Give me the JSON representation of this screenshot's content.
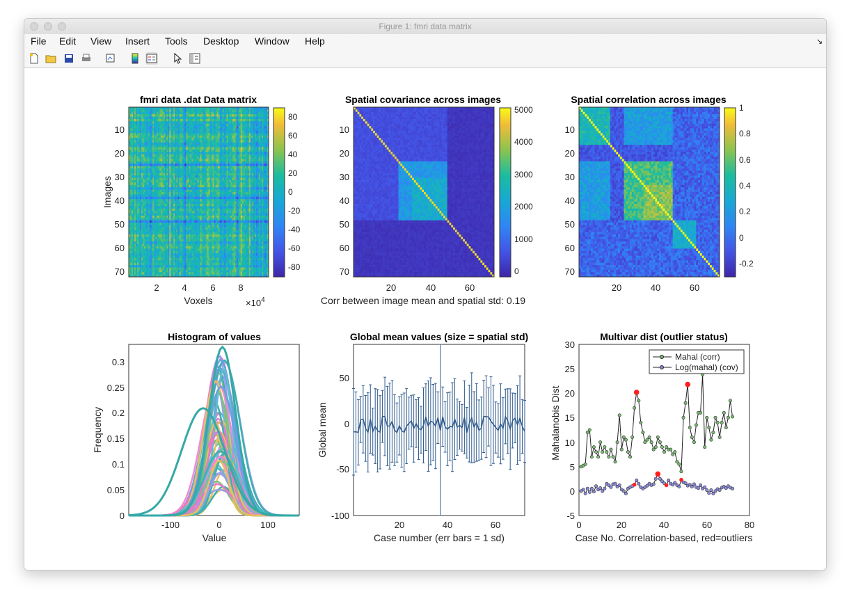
{
  "window": {
    "title": "Figure 1: fmri data matrix"
  },
  "menu": [
    "File",
    "Edit",
    "View",
    "Insert",
    "Tools",
    "Desktop",
    "Window",
    "Help"
  ],
  "toolbar_icons": [
    "new-figure-icon",
    "open-file-icon",
    "save-icon",
    "print-icon",
    "link-plot-icon",
    "colorbar-icon",
    "legend-icon",
    "pointer-icon",
    "property-inspector-icon"
  ],
  "colors": {
    "parula_low": "#3e26a8",
    "parula_mid": "#13beb8",
    "parula_high": "#f9fb15",
    "series_line": "#2e5a8c",
    "outlier": "#ff2020"
  },
  "chart_data": [
    {
      "type": "heatmap",
      "title": "fmri data .dat Data matrix",
      "xlabel": "Voxels",
      "ylabel": "Images",
      "x_exponent": "×10",
      "x_exponent_power": "4",
      "xticks": [
        "2",
        "4",
        "6",
        "8"
      ],
      "yticks": [
        "10",
        "20",
        "30",
        "40",
        "50",
        "60",
        "70"
      ],
      "colorbar_ticks": [
        "80",
        "60",
        "40",
        "20",
        "0",
        "-20",
        "-40",
        "-60",
        "-80"
      ],
      "clim": [
        -90,
        90
      ]
    },
    {
      "type": "heatmap",
      "title": "Spatial covariance across images",
      "xlabel": "Corr between image mean and spatial std: 0.19",
      "xticks": [
        "20",
        "40",
        "60"
      ],
      "yticks": [
        "10",
        "20",
        "30",
        "40",
        "50",
        "60",
        "70"
      ],
      "colorbar_ticks": [
        "5000",
        "4000",
        "3000",
        "2000",
        "1000",
        "0"
      ],
      "clim": [
        -100,
        5200
      ]
    },
    {
      "type": "heatmap",
      "title": "Spatial correlation across images",
      "xticks": [
        "20",
        "40",
        "60"
      ],
      "yticks": [
        "10",
        "20",
        "30",
        "40",
        "50",
        "60",
        "70"
      ],
      "colorbar_ticks": [
        "1",
        "0.8",
        "0.6",
        "0.4",
        "0.2",
        "0",
        "-0.2"
      ],
      "clim": [
        -0.32,
        1.0
      ]
    },
    {
      "type": "line",
      "title": "Histogram of values",
      "xlabel": "Value",
      "ylabel": "Frequency",
      "xlim": [
        -190,
        165
      ],
      "ylim": [
        0,
        0.335
      ],
      "xticks": [
        "-100",
        "0",
        "100"
      ],
      "yticks": [
        "0",
        "0.05",
        "0.1",
        "0.15",
        "0.2",
        "0.25",
        "0.3"
      ],
      "series_count": 72
    },
    {
      "type": "line",
      "title": "Global mean values (size = spatial std)",
      "xlabel": "Case number (err bars = 1 sd)",
      "ylabel": "Global mean",
      "xlim": [
        1,
        72
      ],
      "ylim": [
        -100,
        88
      ],
      "xticks": [
        "20",
        "40",
        "60"
      ],
      "yticks": [
        "50",
        "0",
        "-50",
        "-100"
      ]
    },
    {
      "type": "line",
      "title": "Multivar dist (outlier status)",
      "xlabel": "Case No. Correlation-based, red=outliers",
      "ylabel": "Mahalanobis Dist",
      "xlim": [
        0,
        80
      ],
      "ylim": [
        -5,
        30
      ],
      "xticks": [
        "0",
        "20",
        "40",
        "60",
        "80"
      ],
      "yticks": [
        "30",
        "25",
        "20",
        "15",
        "10",
        "5",
        "0",
        "-5"
      ],
      "legend": [
        "Mahal (corr)",
        "Log(mahal) (cov)"
      ],
      "mahal_corr": [
        5,
        5.2,
        5.5,
        12,
        12.5,
        7,
        9,
        8,
        7,
        10,
        8,
        9,
        8,
        7,
        8.5,
        7,
        6,
        10,
        15.5,
        8.5,
        11,
        10.5,
        8,
        7,
        11,
        17,
        20.2,
        18.5,
        14,
        12,
        10,
        10.5,
        11,
        10,
        8.5,
        9,
        11,
        10,
        9,
        8,
        9,
        8.5,
        8.5,
        7.5,
        8,
        6,
        5.5,
        4,
        15,
        18,
        21.8,
        13,
        11,
        10,
        13.5,
        16,
        16,
        23.8,
        9,
        15,
        13,
        10.5,
        12,
        15,
        14,
        11,
        14,
        16,
        13,
        15,
        18.5,
        15.2
      ],
      "log_mahal_cov": [
        0,
        0.3,
        -0.5,
        0.5,
        -0.2,
        0.5,
        -0.1,
        1,
        0.3,
        0.6,
        0,
        0.5,
        1.5,
        1.2,
        0.8,
        1.4,
        1.5,
        0.9,
        1.2,
        0.3,
        0,
        -0.5,
        0.5,
        0.8,
        1,
        1.3,
        2.2,
        1.5,
        0.8,
        0.5,
        0.8,
        1.1,
        1.5,
        1.2,
        1.4,
        2.5,
        3.5,
        2.5,
        2,
        1.6,
        1.2,
        2.2,
        1.5,
        1.3,
        1.7,
        1.2,
        0.9,
        2.3,
        1.8,
        1.6,
        1.1,
        1.3,
        0.9,
        1.4,
        0.8,
        0.6,
        1.2,
        0.5,
        0.8,
        0.2,
        -0.4,
        0.2,
        -0.5,
        0,
        0.4,
        0.2,
        0.7,
        0.9,
        0.6,
        1,
        0.7,
        0.5
      ],
      "outliers_corr": [
        27,
        51
      ],
      "outliers_cov": [
        26,
        37,
        41,
        48
      ]
    }
  ]
}
